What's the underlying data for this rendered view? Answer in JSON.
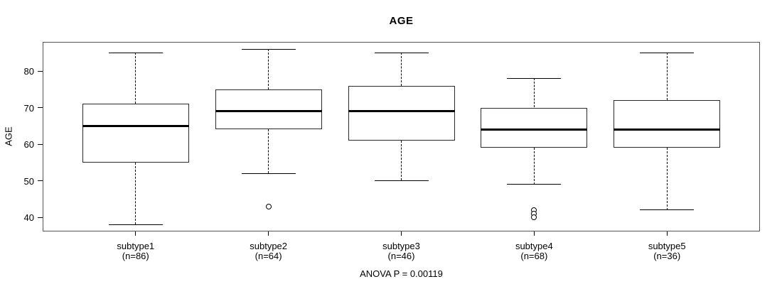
{
  "figure": {
    "title": "AGE",
    "y_axis_label": "AGE",
    "annotation": "ANOVA P = 0.00119"
  },
  "chart_data": {
    "type": "boxplot",
    "title": "AGE",
    "xlabel": "",
    "ylabel": "AGE",
    "ylim": [
      36,
      88
    ],
    "yticks": [
      40,
      50,
      60,
      70,
      80
    ],
    "grid": false,
    "legend": "none",
    "annotation": "ANOVA P = 0.00119",
    "categories": [
      "subtype1",
      "subtype2",
      "subtype3",
      "subtype4",
      "subtype5"
    ],
    "category_sublabels": [
      "(n=86)",
      "(n=64)",
      "(n=46)",
      "(n=68)",
      "(n=36)"
    ],
    "series": [
      {
        "category": "subtype1",
        "n": 86,
        "whisker_low": 38,
        "q1": 55,
        "median": 65,
        "q3": 71,
        "whisker_high": 85,
        "outliers": []
      },
      {
        "category": "subtype2",
        "n": 64,
        "whisker_low": 52,
        "q1": 64,
        "median": 69,
        "q3": 75,
        "whisker_high": 86,
        "outliers": [
          43
        ]
      },
      {
        "category": "subtype3",
        "n": 46,
        "whisker_low": 50,
        "q1": 61,
        "median": 69,
        "q3": 76,
        "whisker_high": 85,
        "outliers": []
      },
      {
        "category": "subtype4",
        "n": 68,
        "whisker_low": 49,
        "q1": 59,
        "median": 64,
        "q3": 70,
        "whisker_high": 78,
        "outliers": [
          42,
          41,
          40
        ]
      },
      {
        "category": "subtype5",
        "n": 36,
        "whisker_low": 42,
        "q1": 59,
        "median": 64,
        "q3": 72,
        "whisker_high": 85,
        "outliers": []
      }
    ],
    "colors": {
      "line": "#000000",
      "frame": "#555555",
      "background": "#ffffff"
    }
  }
}
